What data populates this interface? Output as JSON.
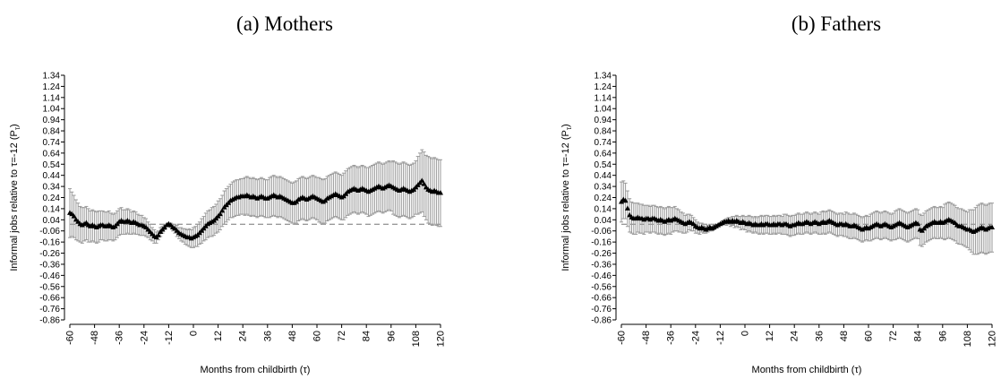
{
  "chart_data": [
    {
      "type": "errorbar",
      "title": "(a) Mothers",
      "x_label": "Months from childbirth (τ)",
      "y_label": {
        "main": "Informal jobs relative to τ=-12 (P",
        "sub": "τ",
        "end": ")"
      },
      "marker_color": "#000000",
      "error_color": "#9a9a9a",
      "reference_line": 0,
      "xlim": [
        -60,
        120
      ],
      "xticks": [
        -60,
        -48,
        -36,
        -24,
        -12,
        0,
        12,
        24,
        36,
        48,
        60,
        72,
        84,
        96,
        108,
        120
      ],
      "ylim": [
        -0.86,
        1.34
      ],
      "yticks": [
        1.34,
        1.24,
        1.14,
        1.04,
        0.94,
        0.84,
        0.74,
        0.64,
        0.54,
        0.44,
        0.34,
        0.24,
        0.14,
        0.04,
        -0.06,
        -0.16,
        -0.26,
        -0.36,
        -0.46,
        -0.56,
        -0.66,
        -0.76,
        -0.86
      ],
      "x": [
        -60,
        -59,
        -58,
        -57,
        -56,
        -55,
        -54,
        -53,
        -52,
        -51,
        -50,
        -49,
        -48,
        -47,
        -46,
        -45,
        -44,
        -43,
        -42,
        -41,
        -40,
        -39,
        -38,
        -37,
        -36,
        -35,
        -34,
        -33,
        -32,
        -31,
        -30,
        -29,
        -28,
        -27,
        -26,
        -25,
        -24,
        -23,
        -22,
        -21,
        -20,
        -19,
        -18,
        -17,
        -16,
        -15,
        -14,
        -13,
        -12,
        -11,
        -10,
        -9,
        -8,
        -7,
        -6,
        -5,
        -4,
        -3,
        -2,
        -1,
        0,
        1,
        2,
        3,
        4,
        5,
        6,
        7,
        8,
        9,
        10,
        11,
        12,
        13,
        14,
        15,
        16,
        17,
        18,
        19,
        20,
        21,
        22,
        23,
        24,
        25,
        26,
        27,
        28,
        29,
        30,
        31,
        32,
        33,
        34,
        35,
        36,
        37,
        38,
        39,
        40,
        41,
        42,
        43,
        44,
        45,
        46,
        47,
        48,
        49,
        50,
        51,
        52,
        53,
        54,
        55,
        56,
        57,
        58,
        59,
        60,
        61,
        62,
        63,
        64,
        65,
        66,
        67,
        68,
        69,
        70,
        71,
        72,
        73,
        74,
        75,
        76,
        77,
        78,
        79,
        80,
        81,
        82,
        83,
        84,
        85,
        86,
        87,
        88,
        89,
        90,
        91,
        92,
        93,
        94,
        95,
        96,
        97,
        98,
        99,
        100,
        101,
        102,
        103,
        104,
        105,
        106,
        107,
        108,
        109,
        110,
        111,
        112,
        113,
        114,
        115,
        116,
        117,
        118,
        119,
        120
      ],
      "values": [
        0.1,
        0.09,
        0.07,
        0.04,
        0.02,
        0.0,
        -0.01,
        0.0,
        0.01,
        -0.01,
        -0.02,
        -0.01,
        -0.02,
        -0.03,
        -0.02,
        -0.01,
        -0.01,
        -0.02,
        -0.02,
        -0.01,
        -0.02,
        -0.03,
        -0.02,
        0.0,
        0.02,
        0.03,
        0.02,
        0.02,
        0.03,
        0.02,
        0.01,
        0.02,
        0.01,
        0.0,
        -0.01,
        -0.01,
        -0.02,
        -0.03,
        -0.05,
        -0.07,
        -0.09,
        -0.11,
        -0.12,
        -0.1,
        -0.07,
        -0.05,
        -0.03,
        -0.01,
        0.0,
        -0.01,
        -0.03,
        -0.04,
        -0.06,
        -0.08,
        -0.09,
        -0.1,
        -0.11,
        -0.12,
        -0.12,
        -0.13,
        -0.12,
        -0.11,
        -0.1,
        -0.08,
        -0.06,
        -0.04,
        -0.02,
        0.0,
        0.01,
        0.02,
        0.03,
        0.05,
        0.07,
        0.09,
        0.12,
        0.15,
        0.17,
        0.19,
        0.21,
        0.22,
        0.23,
        0.24,
        0.24,
        0.25,
        0.25,
        0.25,
        0.26,
        0.25,
        0.24,
        0.25,
        0.24,
        0.23,
        0.24,
        0.25,
        0.24,
        0.23,
        0.23,
        0.24,
        0.25,
        0.26,
        0.25,
        0.24,
        0.25,
        0.24,
        0.23,
        0.22,
        0.21,
        0.2,
        0.19,
        0.19,
        0.2,
        0.22,
        0.23,
        0.24,
        0.23,
        0.22,
        0.23,
        0.24,
        0.25,
        0.24,
        0.23,
        0.22,
        0.21,
        0.2,
        0.21,
        0.23,
        0.24,
        0.25,
        0.26,
        0.27,
        0.26,
        0.25,
        0.24,
        0.25,
        0.27,
        0.29,
        0.3,
        0.31,
        0.32,
        0.31,
        0.3,
        0.31,
        0.32,
        0.31,
        0.3,
        0.29,
        0.3,
        0.31,
        0.32,
        0.33,
        0.34,
        0.33,
        0.32,
        0.33,
        0.34,
        0.35,
        0.34,
        0.33,
        0.32,
        0.31,
        0.3,
        0.31,
        0.32,
        0.31,
        0.3,
        0.29,
        0.3,
        0.31,
        0.33,
        0.35,
        0.37,
        0.39,
        0.36,
        0.33,
        0.31,
        0.3,
        0.29,
        0.3,
        0.29,
        0.28,
        0.28
      ],
      "errors": [
        0.22,
        0.2,
        0.19,
        0.18,
        0.17,
        0.16,
        0.16,
        0.15,
        0.15,
        0.15,
        0.14,
        0.14,
        0.14,
        0.14,
        0.14,
        0.13,
        0.13,
        0.13,
        0.13,
        0.13,
        0.12,
        0.12,
        0.12,
        0.12,
        0.12,
        0.12,
        0.11,
        0.11,
        0.11,
        0.11,
        0.1,
        0.1,
        0.1,
        0.09,
        0.09,
        0.09,
        0.08,
        0.08,
        0.07,
        0.07,
        0.06,
        0.06,
        0.05,
        0.04,
        0.04,
        0.03,
        0.02,
        0.01,
        0.01,
        0.02,
        0.03,
        0.04,
        0.05,
        0.05,
        0.06,
        0.06,
        0.07,
        0.07,
        0.08,
        0.08,
        0.09,
        0.09,
        0.1,
        0.1,
        0.11,
        0.11,
        0.12,
        0.12,
        0.12,
        0.13,
        0.13,
        0.13,
        0.14,
        0.14,
        0.14,
        0.15,
        0.15,
        0.15,
        0.15,
        0.16,
        0.16,
        0.16,
        0.16,
        0.16,
        0.16,
        0.17,
        0.17,
        0.17,
        0.17,
        0.17,
        0.17,
        0.17,
        0.17,
        0.17,
        0.17,
        0.17,
        0.17,
        0.18,
        0.18,
        0.18,
        0.18,
        0.18,
        0.18,
        0.18,
        0.18,
        0.18,
        0.18,
        0.18,
        0.18,
        0.19,
        0.19,
        0.19,
        0.19,
        0.19,
        0.19,
        0.19,
        0.19,
        0.19,
        0.19,
        0.19,
        0.19,
        0.2,
        0.2,
        0.2,
        0.2,
        0.2,
        0.2,
        0.2,
        0.2,
        0.2,
        0.2,
        0.2,
        0.2,
        0.21,
        0.21,
        0.21,
        0.21,
        0.21,
        0.21,
        0.21,
        0.21,
        0.21,
        0.21,
        0.21,
        0.21,
        0.22,
        0.22,
        0.22,
        0.22,
        0.22,
        0.22,
        0.22,
        0.22,
        0.22,
        0.22,
        0.22,
        0.22,
        0.24,
        0.24,
        0.24,
        0.24,
        0.24,
        0.24,
        0.24,
        0.24,
        0.24,
        0.24,
        0.24,
        0.24,
        0.26,
        0.27,
        0.28,
        0.29,
        0.29,
        0.3,
        0.3,
        0.3,
        0.3,
        0.3,
        0.3,
        0.3
      ]
    },
    {
      "type": "errorbar",
      "title": "(b) Fathers",
      "x_label": "Months from childbirth (τ)",
      "y_label": {
        "main": "Informal jobs relative to τ=-12 (P",
        "sub": "τ",
        "end": ")"
      },
      "marker_color": "#000000",
      "error_color": "#9a9a9a",
      "reference_line": 0,
      "xlim": [
        -60,
        120
      ],
      "xticks": [
        -60,
        -48,
        -36,
        -24,
        -12,
        0,
        12,
        24,
        36,
        48,
        60,
        72,
        84,
        96,
        108,
        120
      ],
      "ylim": [
        -0.86,
        1.34
      ],
      "yticks": [
        1.34,
        1.24,
        1.14,
        1.04,
        0.94,
        0.84,
        0.74,
        0.64,
        0.54,
        0.44,
        0.34,
        0.24,
        0.14,
        0.04,
        -0.06,
        -0.16,
        -0.26,
        -0.36,
        -0.46,
        -0.56,
        -0.66,
        -0.76,
        -0.86
      ],
      "x": [
        -60,
        -59,
        -58,
        -57,
        -56,
        -55,
        -54,
        -53,
        -52,
        -51,
        -50,
        -49,
        -48,
        -47,
        -46,
        -45,
        -44,
        -43,
        -42,
        -41,
        -40,
        -39,
        -38,
        -37,
        -36,
        -35,
        -34,
        -33,
        -32,
        -31,
        -30,
        -29,
        -28,
        -27,
        -26,
        -25,
        -24,
        -23,
        -22,
        -21,
        -20,
        -19,
        -18,
        -17,
        -16,
        -15,
        -14,
        -13,
        -12,
        -11,
        -10,
        -9,
        -8,
        -7,
        -6,
        -5,
        -4,
        -3,
        -2,
        -1,
        0,
        1,
        2,
        3,
        4,
        5,
        6,
        7,
        8,
        9,
        10,
        11,
        12,
        13,
        14,
        15,
        16,
        17,
        18,
        19,
        20,
        21,
        22,
        23,
        24,
        25,
        26,
        27,
        28,
        29,
        30,
        31,
        32,
        33,
        34,
        35,
        36,
        37,
        38,
        39,
        40,
        41,
        42,
        43,
        44,
        45,
        46,
        47,
        48,
        49,
        50,
        51,
        52,
        53,
        54,
        55,
        56,
        57,
        58,
        59,
        60,
        61,
        62,
        63,
        64,
        65,
        66,
        67,
        68,
        69,
        70,
        71,
        72,
        73,
        74,
        75,
        76,
        77,
        78,
        79,
        80,
        81,
        82,
        83,
        84,
        85,
        86,
        87,
        88,
        89,
        90,
        91,
        92,
        93,
        94,
        95,
        96,
        97,
        98,
        99,
        100,
        101,
        102,
        103,
        104,
        105,
        106,
        107,
        108,
        109,
        110,
        111,
        112,
        113,
        114,
        115,
        116,
        117,
        118,
        119,
        120
      ],
      "values": [
        0.2,
        0.22,
        0.21,
        0.14,
        0.08,
        0.06,
        0.05,
        0.05,
        0.06,
        0.05,
        0.05,
        0.04,
        0.05,
        0.05,
        0.04,
        0.05,
        0.05,
        0.04,
        0.03,
        0.04,
        0.03,
        0.02,
        0.03,
        0.04,
        0.03,
        0.04,
        0.05,
        0.04,
        0.03,
        0.02,
        0.01,
        0.0,
        0.01,
        0.02,
        0.01,
        0.0,
        -0.02,
        -0.03,
        -0.04,
        -0.03,
        -0.04,
        -0.05,
        -0.04,
        -0.03,
        -0.04,
        -0.03,
        -0.02,
        -0.01,
        0.0,
        0.01,
        0.02,
        0.02,
        0.03,
        0.02,
        0.03,
        0.02,
        0.03,
        0.02,
        0.01,
        0.02,
        0.01,
        0.0,
        0.01,
        0.0,
        -0.01,
        0.0,
        -0.01,
        -0.01,
        0.0,
        -0.01,
        0.0,
        0.0,
        -0.01,
        -0.01,
        0.0,
        -0.01,
        0.0,
        0.0,
        -0.01,
        0.0,
        0.0,
        -0.01,
        -0.02,
        -0.01,
        -0.01,
        0.0,
        0.01,
        0.0,
        0.0,
        0.01,
        0.02,
        0.01,
        0.0,
        0.01,
        0.02,
        0.01,
        0.0,
        0.01,
        0.02,
        0.01,
        0.02,
        0.03,
        0.02,
        0.01,
        0.0,
        -0.01,
        0.0,
        0.0,
        -0.01,
        0.0,
        -0.01,
        -0.02,
        -0.02,
        -0.01,
        -0.02,
        -0.03,
        -0.04,
        -0.05,
        -0.04,
        -0.03,
        -0.04,
        -0.03,
        -0.02,
        -0.01,
        0.0,
        -0.01,
        -0.02,
        -0.01,
        0.0,
        -0.01,
        -0.02,
        -0.03,
        -0.02,
        -0.01,
        0.0,
        0.01,
        0.0,
        -0.01,
        -0.02,
        -0.03,
        -0.02,
        -0.01,
        0.0,
        0.01,
        0.0,
        -0.05,
        -0.06,
        -0.04,
        -0.02,
        -0.01,
        0.0,
        0.01,
        0.02,
        0.01,
        0.01,
        0.02,
        0.01,
        0.02,
        0.03,
        0.04,
        0.03,
        0.02,
        0.01,
        -0.01,
        -0.02,
        -0.02,
        -0.03,
        -0.04,
        -0.05,
        -0.05,
        -0.06,
        -0.07,
        -0.06,
        -0.05,
        -0.04,
        -0.03,
        -0.04,
        -0.05,
        -0.04,
        -0.03,
        -0.03
      ],
      "errors": [
        0.18,
        0.17,
        0.16,
        0.16,
        0.15,
        0.14,
        0.14,
        0.14,
        0.13,
        0.13,
        0.13,
        0.13,
        0.12,
        0.12,
        0.12,
        0.12,
        0.12,
        0.12,
        0.12,
        0.12,
        0.12,
        0.12,
        0.12,
        0.12,
        0.12,
        0.11,
        0.11,
        0.1,
        0.1,
        0.09,
        0.09,
        0.08,
        0.08,
        0.07,
        0.07,
        0.06,
        0.06,
        0.05,
        0.05,
        0.04,
        0.04,
        0.03,
        0.03,
        0.03,
        0.02,
        0.02,
        0.01,
        0.01,
        0.01,
        0.02,
        0.02,
        0.03,
        0.03,
        0.04,
        0.04,
        0.05,
        0.05,
        0.05,
        0.06,
        0.06,
        0.06,
        0.07,
        0.07,
        0.07,
        0.07,
        0.07,
        0.07,
        0.08,
        0.08,
        0.08,
        0.08,
        0.08,
        0.08,
        0.08,
        0.08,
        0.08,
        0.08,
        0.08,
        0.08,
        0.09,
        0.09,
        0.09,
        0.09,
        0.09,
        0.09,
        0.09,
        0.09,
        0.09,
        0.09,
        0.09,
        0.09,
        0.09,
        0.09,
        0.09,
        0.09,
        0.09,
        0.09,
        0.1,
        0.1,
        0.1,
        0.1,
        0.1,
        0.1,
        0.1,
        0.1,
        0.1,
        0.1,
        0.1,
        0.1,
        0.11,
        0.11,
        0.11,
        0.11,
        0.11,
        0.11,
        0.11,
        0.11,
        0.11,
        0.11,
        0.11,
        0.11,
        0.12,
        0.12,
        0.12,
        0.12,
        0.12,
        0.12,
        0.12,
        0.12,
        0.12,
        0.12,
        0.12,
        0.12,
        0.13,
        0.13,
        0.13,
        0.13,
        0.13,
        0.13,
        0.13,
        0.13,
        0.13,
        0.13,
        0.13,
        0.13,
        0.14,
        0.14,
        0.14,
        0.14,
        0.14,
        0.14,
        0.14,
        0.14,
        0.14,
        0.14,
        0.14,
        0.14,
        0.16,
        0.16,
        0.16,
        0.16,
        0.16,
        0.16,
        0.16,
        0.16,
        0.16,
        0.16,
        0.16,
        0.16,
        0.18,
        0.19,
        0.2,
        0.21,
        0.22,
        0.22,
        0.22,
        0.22,
        0.22,
        0.22,
        0.22,
        0.22
      ]
    }
  ]
}
